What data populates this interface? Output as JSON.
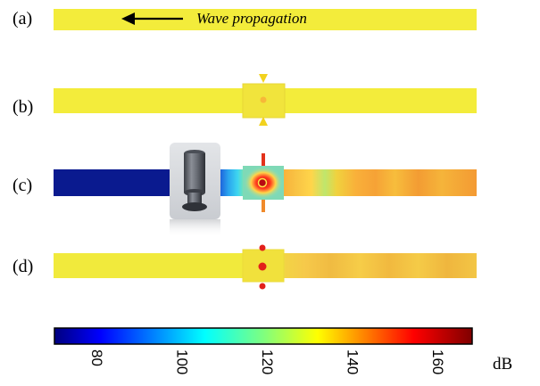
{
  "panels": {
    "a": {
      "label": "(a)"
    },
    "b": {
      "label": "(b)"
    },
    "c": {
      "label": "(c)"
    },
    "d": {
      "label": "(d)"
    }
  },
  "annotation": {
    "wave_text": "Wave propagation",
    "arrow_icon": "left-arrow-icon"
  },
  "inset": {
    "icon": "cylindrical-resonator-icon"
  },
  "colorbar": {
    "unit": "dB",
    "ticks": [
      "80",
      "100",
      "120",
      "140",
      "160"
    ],
    "tick_values": [
      80,
      100,
      120,
      140,
      160
    ],
    "range": [
      70,
      168
    ],
    "colormap": "jet"
  },
  "colors": {
    "yellow_field": "#f3ec3b",
    "deep_blue": "#0a1a8f",
    "orange_field": "#f7b03a",
    "hot_red": "#ee2a1e"
  }
}
